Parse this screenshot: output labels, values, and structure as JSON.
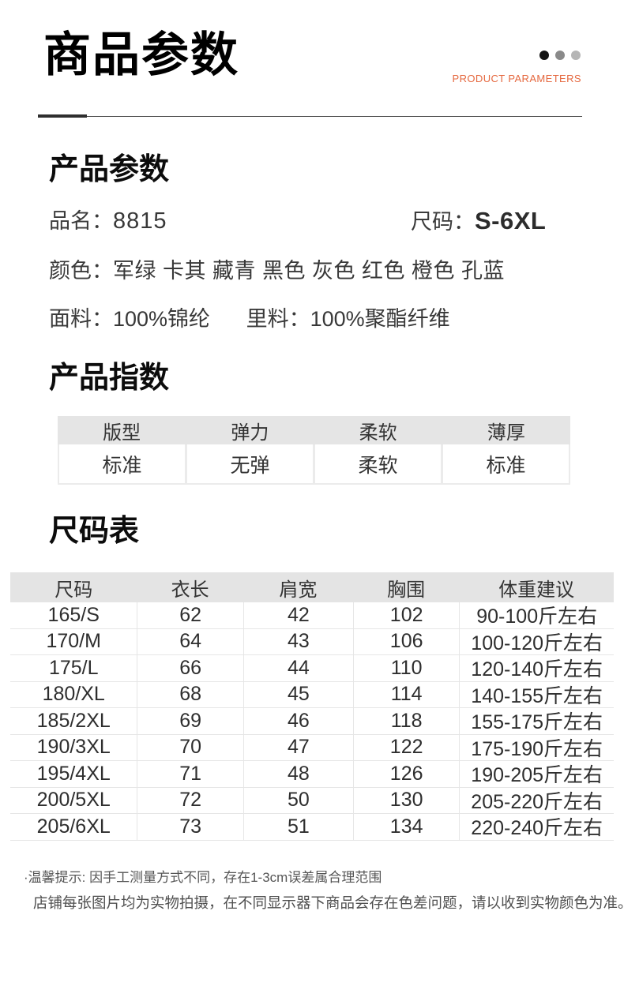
{
  "header": {
    "title": "商品参数",
    "subtitle": "PRODUCT PARAMETERS",
    "accent_color": "#e5683f",
    "dot_colors": [
      "#131313",
      "#8a8a8a",
      "#b6b6b6"
    ]
  },
  "product_params": {
    "heading": "产品参数",
    "rows": [
      {
        "label": "品名：",
        "value": "8815"
      },
      {
        "label": "尺码：",
        "value": "S-6XL"
      },
      {
        "label": "颜色：",
        "value": "军绿 卡其 藏青 黑色 灰色 红色 橙色 孔蓝"
      },
      {
        "label": "面料：",
        "value": "100%锦纶"
      },
      {
        "label": "里料：",
        "value": "100%聚酯纤维"
      }
    ]
  },
  "product_index": {
    "heading": "产品指数",
    "columns": [
      "版型",
      "弹力",
      "柔软",
      "薄厚"
    ],
    "values": [
      "标准",
      "无弹",
      "柔软",
      "标准"
    ]
  },
  "size_chart": {
    "heading": "尺码表",
    "columns": [
      "尺码",
      "衣长",
      "肩宽",
      "胸围",
      "体重建议"
    ],
    "column_widths": [
      "21%",
      "17.6%",
      "18.2%",
      "17.6%",
      "25.6%"
    ],
    "rows": [
      [
        "165/S",
        "62",
        "42",
        "102",
        "90-100斤左右"
      ],
      [
        "170/M",
        "64",
        "43",
        "106",
        "100-120斤左右"
      ],
      [
        "175/L",
        "66",
        "44",
        "110",
        "120-140斤左右"
      ],
      [
        "180/XL",
        "68",
        "45",
        "114",
        "140-155斤左右"
      ],
      [
        "185/2XL",
        "69",
        "46",
        "118",
        "155-175斤左右"
      ],
      [
        "190/3XL",
        "70",
        "47",
        "122",
        "175-190斤左右"
      ],
      [
        "195/4XL",
        "71",
        "48",
        "126",
        "190-205斤左右"
      ],
      [
        "200/5XL",
        "72",
        "50",
        "130",
        "205-220斤左右"
      ],
      [
        "205/6XL",
        "73",
        "51",
        "134",
        "220-240斤左右"
      ]
    ]
  },
  "footer": {
    "note1": "·温馨提示: 因手工测量方式不同，存在1-3cm误差属合理范围",
    "note2": "店铺每张图片均为实物拍摄，在不同显示器下商品会存在色差问题，请以收到实物颜色为准。"
  }
}
